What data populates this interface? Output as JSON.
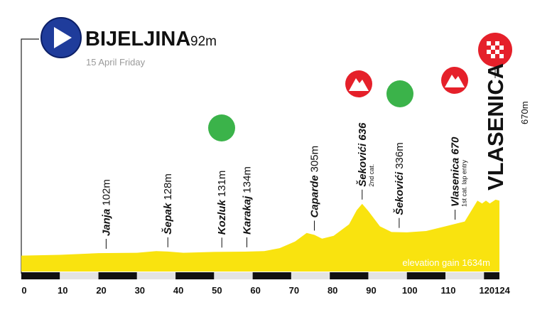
{
  "start": {
    "name": "BIJELJINA",
    "elevation": "92m",
    "date": "15 April Friday"
  },
  "finish": {
    "name": "VLASENICA",
    "elevation": "670m"
  },
  "chart_data": {
    "type": "area",
    "color": "#f9e30f",
    "x": [
      0,
      10,
      20,
      30,
      35,
      38,
      42,
      50,
      58,
      63,
      67,
      71,
      74,
      76,
      78,
      81,
      85,
      87,
      88.4,
      90,
      93,
      96,
      100,
      105,
      110,
      115,
      118.3,
      119.5,
      120.5,
      121.5,
      123,
      124
    ],
    "values": [
      92,
      100,
      118,
      122,
      140,
      135,
      122,
      131,
      134,
      140,
      170,
      240,
      330,
      310,
      270,
      300,
      420,
      570,
      636,
      560,
      400,
      340,
      336,
      350,
      400,
      450,
      670,
      640,
      670,
      640,
      680,
      670
    ],
    "xlim": [
      0,
      124
    ],
    "ylim": [
      -75,
      2000
    ],
    "xticks": [
      0,
      10,
      20,
      30,
      40,
      50,
      60,
      70,
      80,
      90,
      100,
      110,
      120,
      124
    ],
    "waypoints": [
      {
        "name": "Janja",
        "elevation": "102m",
        "km": 22
      },
      {
        "name": "Šepak",
        "elevation": "128m",
        "km": 38
      },
      {
        "name": "Kozluk",
        "elevation": "131m",
        "km": 52
      },
      {
        "name": "Karakaj",
        "elevation": "134m",
        "km": 58.5
      },
      {
        "name": "Caparde",
        "elevation": "305m",
        "km": 76
      },
      {
        "name": "Šekovići 636",
        "note": "2nd cat.",
        "km": 88.4
      },
      {
        "name": "Šekovići",
        "elevation": "336m",
        "km": 98
      },
      {
        "name": "Vlasenica 670",
        "note": "1st cat. lap entry",
        "km": 112.5
      }
    ],
    "annotation": "elevation gain 1634m"
  }
}
